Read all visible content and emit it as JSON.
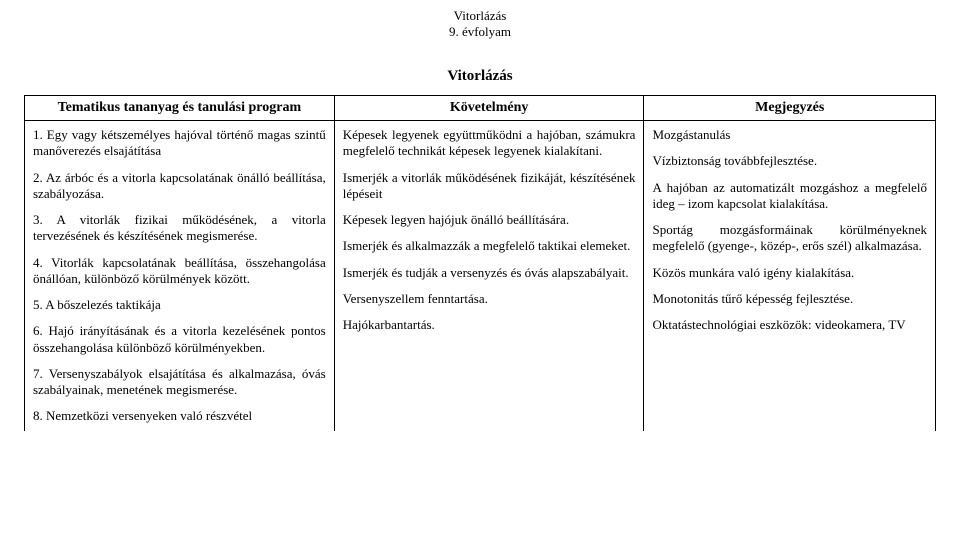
{
  "header": {
    "line1": "Vitorlázás",
    "line2": "9. évfolyam"
  },
  "title": "Vitorlázás",
  "table": {
    "columns": [
      "Tematikus tananyag és tanulási program",
      "Követelmény",
      "Megjegyzés"
    ],
    "col_widths_pct": [
      34,
      34,
      32
    ],
    "border_color": "#000000",
    "background_color": "#ffffff",
    "header_fontsize": 14,
    "body_fontsize": 13
  },
  "col1_items": [
    "1. Egy vagy kétszemélyes hajóval történő magas szintű manőverezés elsajátítása",
    "2. Az árbóc és a vitorla kapcsolatának önálló beállítása, szabályozása.",
    "3. A vitorlák fizikai működésének, a vitorla tervezésének és készítésének megismerése.",
    "4. Vitorlák kapcsolatának beállítása, összehangolása önállóan, különböző körülmények között.",
    "5. A bőszelezés taktikája",
    "6. Hajó irányításának és a vitorla kezelésének pontos összehangolása különböző körülményekben.",
    "7. Versenyszabályok elsajátítása és alkalmazása, óvás szabályainak, menetének megismerése.",
    "8. Nemzetközi versenyeken való részvétel"
  ],
  "col2_items": [
    "Képesek legyenek együttműködni a hajóban, számukra megfelelő technikát képesek legyenek kialakítani.",
    "Ismerjék a vitorlák működésének fizikáját, készítésének lépéseit",
    "Képesek legyen hajójuk önálló beállítására.",
    "Ismerjék és alkalmazzák a megfelelő taktikai elemeket.",
    "Ismerjék és tudják a versenyzés és óvás alapszabályait.",
    "Versenyszellem fenntartása.",
    "Hajókarbantartás."
  ],
  "col3_items": [
    "Mozgástanulás",
    "Vízbiztonság továbbfejlesztése.",
    "A hajóban az automatizált mozgáshoz a megfelelő ideg – izom kapcsolat kialakítása.",
    "Sportág mozgásformáinak körülményeknek megfelelő (gyenge-, közép-, erős szél) alkalmazása.",
    "Közös munkára való igény kialakítása.",
    "Monotonitás tűrő képesség fejlesztése.",
    "Oktatástechnológiai eszközök: videokamera, TV"
  ]
}
